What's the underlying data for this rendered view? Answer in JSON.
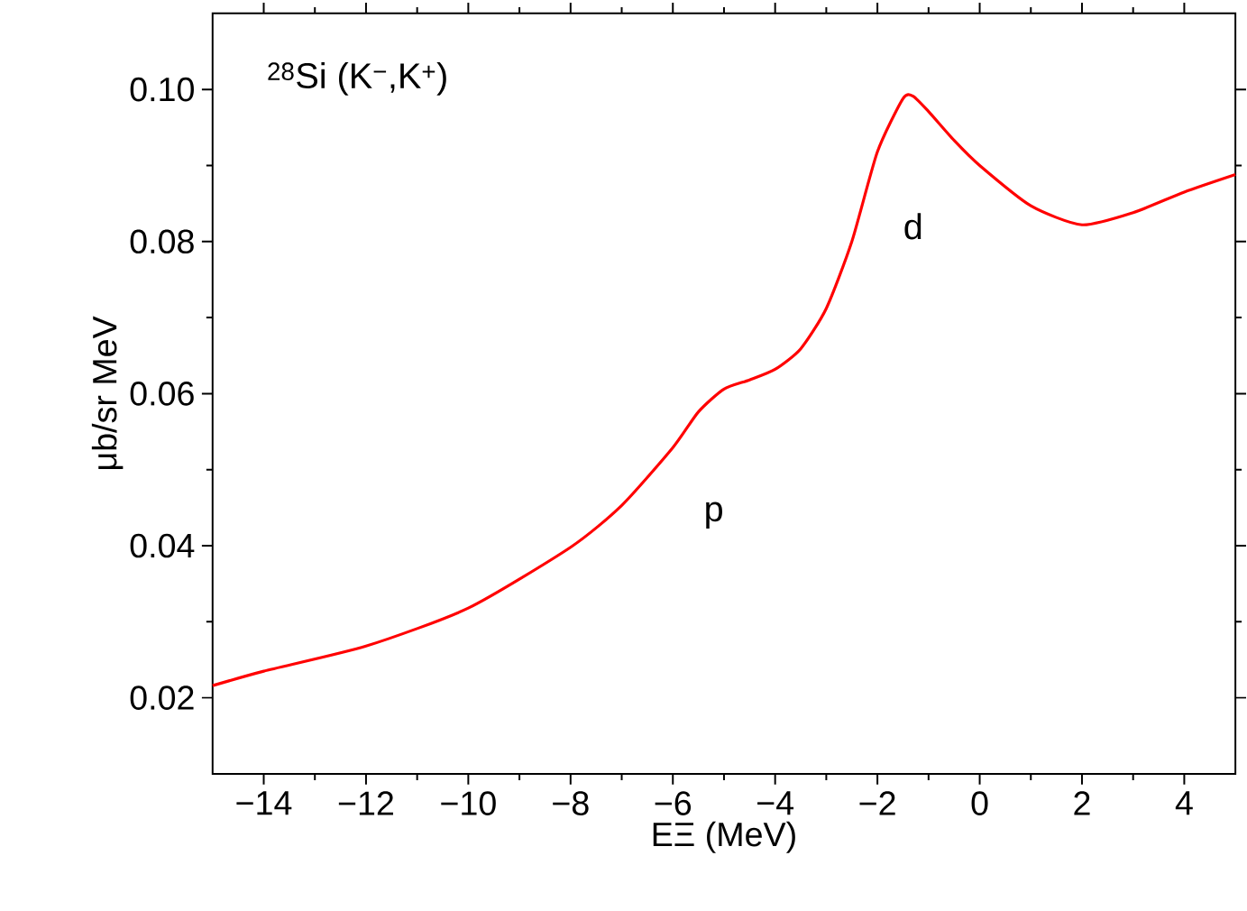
{
  "chart_data": {
    "type": "line",
    "xlabel": "EΞ (MeV)",
    "ylabel": "μb/sr MeV",
    "annotations": [
      "$^{28}$Si (K$^{−}$,K$^{+}$)",
      "p",
      "d"
    ],
    "x": [
      -15,
      -14,
      -12,
      -10,
      -8,
      -7,
      -6,
      -5.5,
      -5,
      -4.5,
      -4,
      -3.5,
      -3,
      -2.5,
      -2,
      -1.5,
      -1.3,
      -1,
      -0.5,
      0,
      1,
      2,
      3,
      4,
      5
    ],
    "series": [
      {
        "color": "#ff0000",
        "values": [
          0.0216,
          0.0235,
          0.0268,
          0.0318,
          0.0398,
          0.0453,
          0.0529,
          0.0576,
          0.0606,
          0.0618,
          0.0632,
          0.0659,
          0.0712,
          0.08,
          0.0918,
          0.0988,
          0.0991,
          0.0971,
          0.0933,
          0.09,
          0.0847,
          0.0822,
          0.0838,
          0.0865,
          0.0888
        ]
      }
    ],
    "xlim": [
      -15,
      5
    ],
    "ylim": [
      0.01,
      0.11
    ],
    "xticks": [
      {
        "value": -14,
        "label": "−14"
      },
      {
        "value": -12,
        "label": "−12"
      },
      {
        "value": -10,
        "label": "−10"
      },
      {
        "value": -8,
        "label": "−8"
      },
      {
        "value": -6,
        "label": "−6"
      },
      {
        "value": -4,
        "label": "−4"
      },
      {
        "value": -2,
        "label": "−2"
      },
      0,
      2,
      4
    ],
    "yticks": [
      0.02,
      0.04,
      0.06,
      0.08,
      {
        "value": 0.1,
        "label": "0.10"
      }
    ],
    "grid": false,
    "marker": "none",
    "line_style": "solid"
  }
}
